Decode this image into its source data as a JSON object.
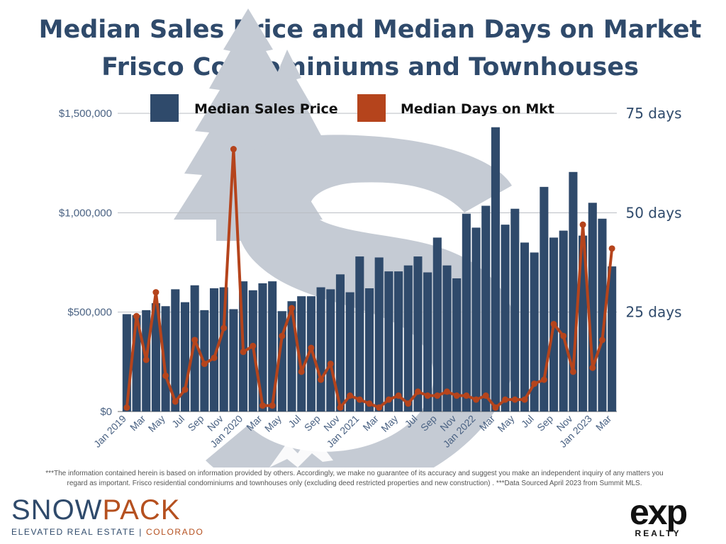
{
  "chart_data": {
    "type": "bar+line",
    "title_line1": "Median Sales Price and Median Days on Market",
    "title_line2": "Frisco Condominiums and Townhouses",
    "legend": {
      "bar_label": "Median Sales Price",
      "line_label": "Median Days on Mkt"
    },
    "left_axis": {
      "ticks": [
        "$0",
        "$500,000",
        "$1,000,000",
        "$1,500,000"
      ],
      "tick_values": [
        0,
        500000,
        1000000,
        1500000
      ],
      "ylim": [
        0,
        1500000
      ]
    },
    "right_axis": {
      "ticks": [
        "25 days",
        "50 days",
        "75 days"
      ],
      "tick_values": [
        25,
        50,
        75
      ],
      "ylim": [
        0,
        75
      ]
    },
    "x_labels": [
      "Jan 2019",
      "Mar",
      "May",
      "Jul",
      "Sep",
      "Nov",
      "Jan 2020",
      "Mar",
      "May",
      "Jul",
      "Sep",
      "Nov",
      "Jan 2021",
      "Mar",
      "May",
      "Jul",
      "Sep",
      "Nov",
      "Jan 2022",
      "Mar",
      "May",
      "Jul",
      "Sep",
      "Nov",
      "Jan 2023",
      "Mar"
    ],
    "series": [
      {
        "name": "Median Sales Price",
        "type": "bar",
        "color": "#2f4a6b",
        "values": [
          490000,
          485000,
          510000,
          545000,
          530000,
          615000,
          550000,
          635000,
          510000,
          620000,
          625000,
          515000,
          655000,
          610000,
          645000,
          655000,
          505000,
          555000,
          580000,
          580000,
          625000,
          615000,
          690000,
          600000,
          780000,
          620000,
          775000,
          705000,
          705000,
          735000,
          780000,
          700000,
          875000,
          735000,
          670000,
          995000,
          925000,
          1035000,
          1430000,
          940000,
          1020000,
          850000,
          800000,
          1130000,
          875000,
          910000,
          1205000,
          885000,
          1050000,
          970000,
          730000
        ]
      },
      {
        "name": "Median Days on Mkt",
        "type": "line",
        "color": "#b5441c",
        "values": [
          1,
          24,
          13,
          30,
          9,
          2.5,
          5.5,
          18,
          12,
          13.5,
          21,
          66,
          15,
          16.5,
          1.5,
          1.5,
          19,
          26,
          10,
          16,
          8,
          12,
          1,
          4,
          3,
          2,
          1,
          3,
          4,
          2,
          5,
          4,
          4,
          5,
          4,
          4,
          3,
          4,
          1,
          3,
          3,
          3,
          7,
          8,
          22,
          19,
          10,
          47,
          11,
          18,
          41
        ]
      }
    ]
  },
  "footnote": "***The information contained herein is based on information provided by others. Accordingly, we make no guarantee of its accuracy and suggest you make an independent inquiry of any matters you regard as important. Frisco residential condominiums and townhouses only (excluding deed restricted properties and new construction) .  ***Data Sourced April 2023 from Summit MLS.",
  "logos": {
    "snowpack_a": "SNOW",
    "snowpack_b": "PACK",
    "snowpack_tag_a": "ELEVATED REAL ESTATE | ",
    "snowpack_tag_b": "COLORADO",
    "exp_word": "exp",
    "exp_tag": "REALTY"
  },
  "colors": {
    "title": "#2f4a6b",
    "bar": "#2f4a6b",
    "line": "#b5441c",
    "watermark": "#c7ccd5"
  }
}
